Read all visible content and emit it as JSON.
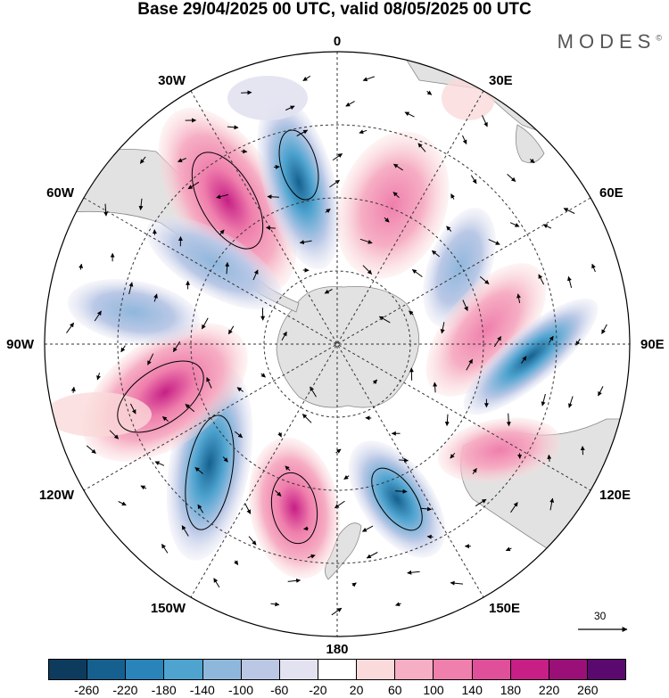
{
  "header": {
    "title": "Base 29/04/2025 00 UTC, valid 08/05/2025 00 UTC",
    "brand": "MODES",
    "brand_mark": "©"
  },
  "map": {
    "projection": "south-polar-stereographic",
    "center_label": "0",
    "longitude_labels": {
      "lon_0": "0",
      "lon_30e": "30E",
      "lon_60e": "60E",
      "lon_90e": "90E",
      "lon_120e": "120E",
      "lon_150e": "150E",
      "lon_180": "180",
      "lon_150w": "150W",
      "lon_120w": "120W",
      "lon_90w": "90W",
      "lon_60w": "60W",
      "lon_30w": "30W"
    },
    "reference_vector_value": "30"
  },
  "colorbar": {
    "colors": [
      "#0d3b5e",
      "#15608f",
      "#2a83b9",
      "#4ea3cf",
      "#8fb7dc",
      "#bac8e6",
      "#e2e2f1",
      "#ffffff",
      "#fadada",
      "#f6aec4",
      "#ef7fac",
      "#e04f9a",
      "#c71f86",
      "#9a0f78",
      "#5a0a6e"
    ],
    "ticks": [
      "-260",
      "-220",
      "-180",
      "-140",
      "-100",
      "-60",
      "-20",
      "20",
      "60",
      "100",
      "140",
      "180",
      "220",
      "260"
    ]
  },
  "palette": {
    "land": "#e2e2e2",
    "grid": "#333333"
  }
}
